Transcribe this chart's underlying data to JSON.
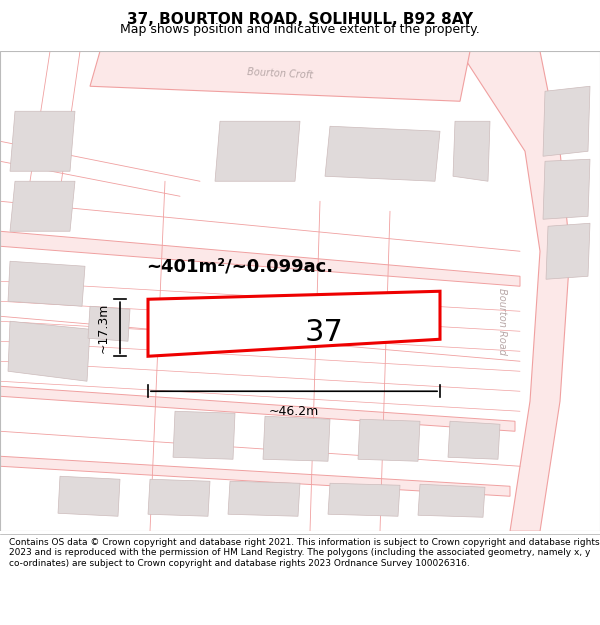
{
  "title_line1": "37, BOURTON ROAD, SOLIHULL, B92 8AY",
  "title_line2": "Map shows position and indicative extent of the property.",
  "footer_text": "Contains OS data © Crown copyright and database right 2021. This information is subject to Crown copyright and database rights 2023 and is reproduced with the permission of HM Land Registry. The polygons (including the associated geometry, namely x, y co-ordinates) are subject to Crown copyright and database rights 2023 Ordnance Survey 100026316.",
  "background_color": "#ffffff",
  "map_bg_color": "#ffffff",
  "road_stroke": "#f0a0a0",
  "road_fill": "#fce8e8",
  "building_fill": "#e0dada",
  "building_stroke": "#ccbbbb",
  "highlight_color": "#ee0000",
  "highlight_fill": "#ffffff",
  "text_color": "#000000",
  "road_label_color": "#b8a8a8",
  "area_text": "~401m²/~0.099ac.",
  "width_text": "~46.2m",
  "height_text": "~17.3m",
  "plot_number": "37",
  "title_fontsize": 11,
  "subtitle_fontsize": 9,
  "footer_fontsize": 6.5,
  "area_fontsize": 13,
  "plot_num_fontsize": 22,
  "dim_fontsize": 9,
  "road_label_fontsize": 7
}
